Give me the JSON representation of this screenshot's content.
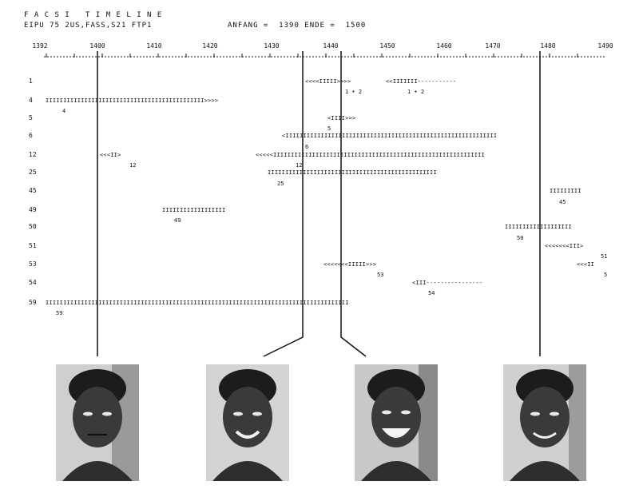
{
  "header": {
    "title": "F A C S I   T I M E L I N E",
    "subtitle": "EIPU 75 2US,FASS,S21 FTP1",
    "range": "ANFANG =  1390 ENDE =  1500"
  },
  "axis": {
    "ticks": [
      "1392",
      "1400",
      "1410",
      "1420",
      "1430",
      "1440",
      "1450",
      "1460",
      "1470",
      "1480",
      "1490"
    ]
  },
  "rows": [
    {
      "label": "1",
      "segments": [
        {
          "text": "<<<<IIIII>>>>"
        },
        {
          "text": "<<IIIIIII-----------"
        }
      ],
      "annotations": [
        "1 • 2",
        "1 • 2"
      ]
    },
    {
      "label": "4",
      "segments": [
        {
          "text": "IIIIIIIIIIIIIIIIIIIIIIIIIIIIIIIIIIIIIIIIIIIII>>>>"
        }
      ],
      "annotations": [
        "4"
      ]
    },
    {
      "label": "5",
      "segments": [
        {
          "text": "<IIII>>>"
        }
      ],
      "annotations": [
        "5"
      ]
    },
    {
      "label": "6",
      "segments": [
        {
          "text": "<IIIIIIIIIIIIIIIIIIIIIIIIIIIIIIIIIIIIIIIIIIIIIIIIIIIIIIIIIIII"
        }
      ],
      "annotations": [
        "6"
      ]
    },
    {
      "label": "12",
      "segments": [
        {
          "text": "<<<II>"
        },
        {
          "text": "<<<<<IIIIIIIIIIIIIIIIIIIIIIIIIIIIIIIIIIIIIIIIIIIIIIIIIIIIIIIIIIII"
        }
      ],
      "annotations": [
        "12",
        "12"
      ]
    },
    {
      "label": "25",
      "segments": [
        {
          "text": "IIIIIIIIIIIIIIIIIIIIIIIIIIIIIIIIIIIIIIIIIIIIIIII"
        }
      ],
      "annotations": [
        "25"
      ]
    },
    {
      "label": "45",
      "segments": [
        {
          "text": "IIIIIIIII"
        }
      ],
      "annotations": [
        "45"
      ]
    },
    {
      "label": "49",
      "segments": [
        {
          "text": "IIIIIIIIIIIIIIIIII"
        }
      ],
      "annotations": [
        "49"
      ]
    },
    {
      "label": "50",
      "segments": [
        {
          "text": "IIIIIIIIIIIIIIIIIII"
        }
      ],
      "annotations": [
        "50"
      ]
    },
    {
      "label": "51",
      "segments": [
        {
          "text": "<<<<<<<III>"
        }
      ],
      "annotations": [
        "51"
      ]
    },
    {
      "label": "53",
      "segments": [
        {
          "text": "<<<<<<<IIIII>>>"
        },
        {
          "text": "<<<II"
        }
      ],
      "annotations": [
        "53",
        "5"
      ]
    },
    {
      "label": "54",
      "segments": [
        {
          "text": "<III----------------"
        }
      ],
      "annotations": [
        "54"
      ]
    },
    {
      "label": "59",
      "segments": [
        {
          "text": "IIIIIIIIIIIIIIIIIIIIIIIIIIIIIIIIIIIIIIIIIIIIIIIIIIIIIIIIIIIIIIIIIIIIIIIIIIIIIIIIIIIIII"
        }
      ],
      "annotations": [
        "59"
      ]
    }
  ],
  "photos": [
    {
      "icon": "face-photo-neutral"
    },
    {
      "icon": "face-photo-smile"
    },
    {
      "icon": "face-photo-broad-smile"
    },
    {
      "icon": "face-photo-fading-smile"
    }
  ]
}
